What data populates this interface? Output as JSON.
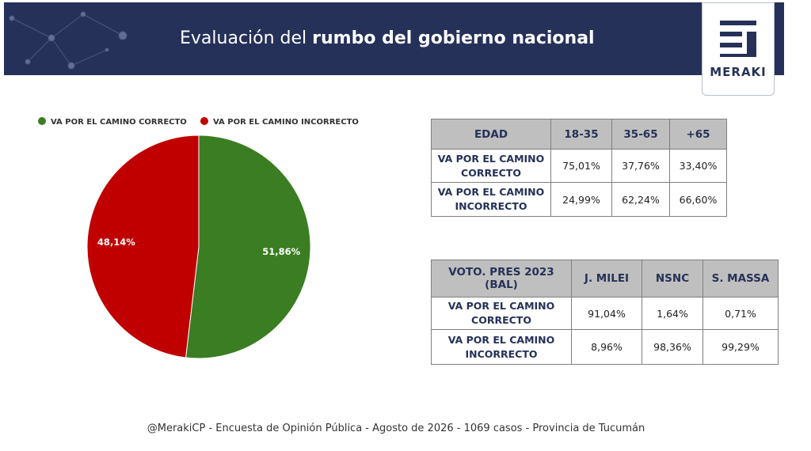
{
  "header": {
    "title_regular": "Evaluación del",
    "title_bold": "rumbo del gobierno nacional",
    "logo": "MERAKI"
  },
  "chart_data": {
    "type": "pie",
    "categories": [
      "VA POR EL CAMINO CORRECTO",
      "VA POR EL CAMINO INCORRECTO"
    ],
    "values": [
      51.86,
      48.14
    ],
    "value_labels": [
      "51,86%",
      "48,14%"
    ],
    "colors": [
      "#3a7d22",
      "#c00000"
    ],
    "legend": "top"
  },
  "tables": [
    {
      "header": [
        "EDAD",
        "18-35",
        "35-65",
        "+65"
      ],
      "rows": [
        [
          "VA POR EL CAMINO CORRECTO",
          "75,01%",
          "37,76%",
          "33,40%"
        ],
        [
          "VA POR EL CAMINO INCORRECTO",
          "24,99%",
          "62,24%",
          "66,60%"
        ]
      ]
    },
    {
      "header": [
        "VOTO. PRES 2023 (BAL)",
        "J. MILEI",
        "NSNC",
        "S. MASSA"
      ],
      "rows": [
        [
          "VA POR EL CAMINO CORRECTO",
          "91,04%",
          "1,64%",
          "0,71%"
        ],
        [
          "VA POR EL CAMINO INCORRECTO",
          "8,96%",
          "98,36%",
          "99,29%"
        ]
      ]
    }
  ],
  "footer": "@MerakiCP - Encuesta de Opinión Pública - Agosto de 2026 - 1069 casos - Provincia de Tucumán"
}
